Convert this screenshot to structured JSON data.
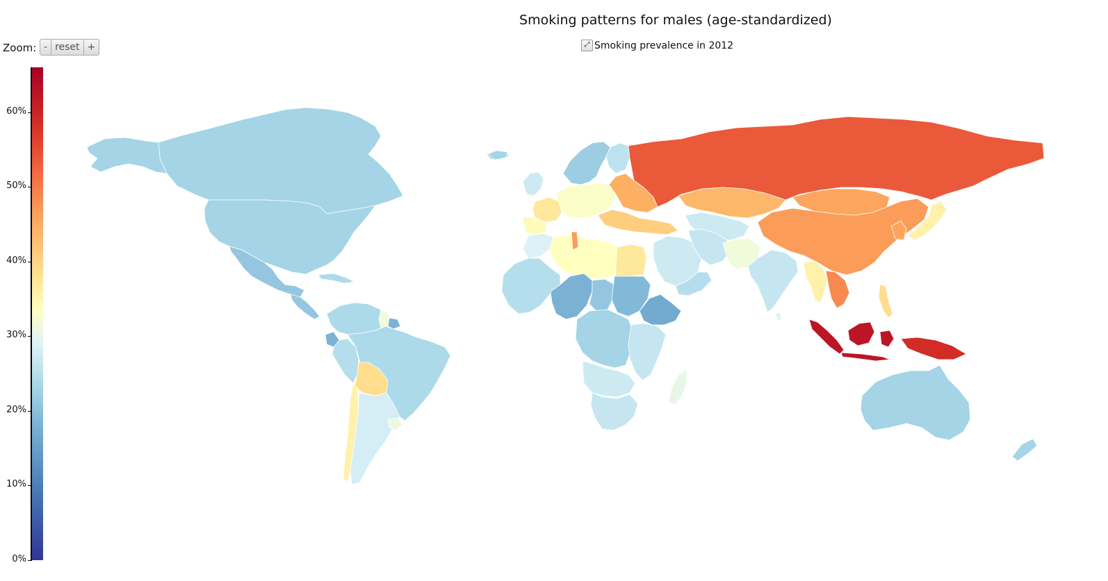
{
  "title": "Smoking patterns for males (age-standardized)",
  "zoom": {
    "label": "Zoom:",
    "minus": "-",
    "reset": "reset",
    "plus": "+"
  },
  "subtitle": {
    "expand_icon": "expand-icon",
    "text": "Smoking prevalence in 2012"
  },
  "legend": {
    "min": 0,
    "max": 66,
    "ticks": [
      {
        "value": 0,
        "label": "0%"
      },
      {
        "value": 10,
        "label": "10%"
      },
      {
        "value": 20,
        "label": "20%"
      },
      {
        "value": 30,
        "label": "30%"
      },
      {
        "value": 40,
        "label": "40%"
      },
      {
        "value": 50,
        "label": "50%"
      },
      {
        "value": 60,
        "label": "60%"
      }
    ],
    "colors": [
      "#313695",
      "#4575b4",
      "#74add1",
      "#abd9e9",
      "#e0f3f8",
      "#ffffbf",
      "#fee090",
      "#fdae61",
      "#f46d43",
      "#d73027",
      "#a50026"
    ]
  },
  "regions": [
    {
      "id": "canada",
      "value": 19
    },
    {
      "id": "usa",
      "value": 19
    },
    {
      "id": "alaska",
      "value": 19
    },
    {
      "id": "greenland",
      "value": 19
    },
    {
      "id": "mexico",
      "value": 17
    },
    {
      "id": "central-america",
      "value": 17
    },
    {
      "id": "cuba",
      "value": 20
    },
    {
      "id": "colombia-venezuela",
      "value": 20
    },
    {
      "id": "ecuador",
      "value": 14
    },
    {
      "id": "peru",
      "value": 21
    },
    {
      "id": "brazil",
      "value": 20
    },
    {
      "id": "bolivia",
      "value": 40
    },
    {
      "id": "chile",
      "value": 36
    },
    {
      "id": "argentina",
      "value": 25
    },
    {
      "id": "uruguay",
      "value": 29
    },
    {
      "id": "guiana",
      "value": 30
    },
    {
      "id": "suriname",
      "value": 14
    },
    {
      "id": "iceland",
      "value": 19
    },
    {
      "id": "uk",
      "value": 24
    },
    {
      "id": "scandinavia",
      "value": 18
    },
    {
      "id": "finland",
      "value": 22
    },
    {
      "id": "western-europe",
      "value": 32
    },
    {
      "id": "iberia",
      "value": 34
    },
    {
      "id": "spain",
      "value": 38
    },
    {
      "id": "eastern-europe",
      "value": 46
    },
    {
      "id": "turkey-balkans",
      "value": 42
    },
    {
      "id": "russia",
      "value": 55
    },
    {
      "id": "kazakhstan",
      "value": 45
    },
    {
      "id": "central-asia",
      "value": 24
    },
    {
      "id": "mongolia",
      "value": 47
    },
    {
      "id": "china",
      "value": 48
    },
    {
      "id": "korea",
      "value": 47
    },
    {
      "id": "japan",
      "value": 36
    },
    {
      "id": "middle-east",
      "value": 24
    },
    {
      "id": "egypt",
      "value": 38
    },
    {
      "id": "libya-algeria",
      "value": 33
    },
    {
      "id": "tunisia",
      "value": 48
    },
    {
      "id": "morocco",
      "value": 26
    },
    {
      "id": "iran",
      "value": 23
    },
    {
      "id": "pakistan-afghanistan",
      "value": 30
    },
    {
      "id": "india",
      "value": 23
    },
    {
      "id": "myanmar-thailand",
      "value": 36
    },
    {
      "id": "vietnam-laos",
      "value": 50
    },
    {
      "id": "philippines",
      "value": 40
    },
    {
      "id": "indonesia",
      "value": 63
    },
    {
      "id": "borneo",
      "value": 63
    },
    {
      "id": "new-guinea",
      "value": 60
    },
    {
      "id": "australia",
      "value": 19
    },
    {
      "id": "new-zealand",
      "value": 19
    },
    {
      "id": "west-africa",
      "value": 21
    },
    {
      "id": "niger-nigeria",
      "value": 14
    },
    {
      "id": "chad",
      "value": 17
    },
    {
      "id": "sudan",
      "value": 15
    },
    {
      "id": "ethiopia",
      "value": 13
    },
    {
      "id": "central-africa",
      "value": 19
    },
    {
      "id": "east-africa",
      "value": 23
    },
    {
      "id": "angola-zambia",
      "value": 24
    },
    {
      "id": "southern-africa",
      "value": 23
    },
    {
      "id": "madagascar",
      "value": 28
    },
    {
      "id": "oman-yemen",
      "value": 21
    },
    {
      "id": "sri-lanka",
      "value": 26
    }
  ]
}
